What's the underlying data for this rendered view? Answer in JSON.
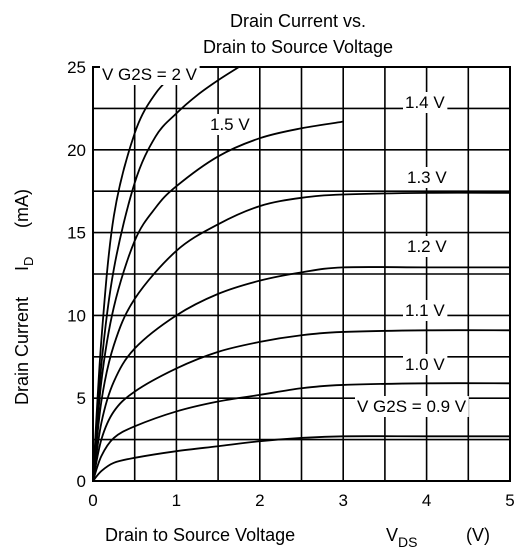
{
  "chart_data": {
    "type": "line",
    "title": [
      "Drain Current vs.",
      "Drain to Source Voltage"
    ],
    "xlabel": "Drain to Source Voltage",
    "xlabel_symbol": "V",
    "xlabel_subscript": "DS",
    "xlabel_unit": "(V)",
    "ylabel": "Drain Current",
    "ylabel_symbol": "I",
    "ylabel_subscript": "D",
    "ylabel_unit": "(mA)",
    "xlim": [
      0,
      5
    ],
    "ylim": [
      0,
      25
    ],
    "x_ticks": [
      0,
      1,
      2,
      3,
      4,
      5
    ],
    "y_ticks": [
      0,
      5,
      10,
      15,
      20,
      25
    ],
    "grid": true,
    "x_minor_step": 0.5,
    "y_minor_step": 2.5,
    "series": [
      {
        "name": "VG2S = 0.9 V",
        "label": "V G2S = 0.9 V",
        "x": [
          0,
          0.1,
          0.25,
          0.5,
          1,
          1.5,
          2,
          2.5,
          3,
          4,
          5
        ],
        "y": [
          0,
          0.6,
          1.1,
          1.4,
          1.8,
          2.1,
          2.4,
          2.6,
          2.7,
          2.7,
          2.7
        ]
      },
      {
        "name": "1.0 V",
        "label": "1.0 V",
        "x": [
          0,
          0.1,
          0.25,
          0.5,
          1,
          1.5,
          2,
          2.5,
          3,
          4,
          5
        ],
        "y": [
          0,
          1.5,
          2.6,
          3.3,
          4.2,
          4.8,
          5.2,
          5.6,
          5.8,
          5.9,
          5.9
        ]
      },
      {
        "name": "1.1 V",
        "label": "1.1 V",
        "x": [
          0,
          0.1,
          0.25,
          0.5,
          1,
          1.5,
          2,
          2.5,
          3,
          4,
          5
        ],
        "y": [
          0,
          2.5,
          4.2,
          5.4,
          6.8,
          7.8,
          8.4,
          8.8,
          9.0,
          9.1,
          9.1
        ]
      },
      {
        "name": "1.2 V",
        "label": "1.2 V",
        "x": [
          0,
          0.1,
          0.25,
          0.5,
          1,
          1.5,
          2,
          2.5,
          3,
          4,
          5
        ],
        "y": [
          0,
          3.5,
          6.0,
          8.0,
          10.0,
          11.3,
          12.1,
          12.6,
          12.9,
          12.9,
          12.9
        ]
      },
      {
        "name": "1.3 V",
        "label": "1.3 V",
        "x": [
          0,
          0.1,
          0.25,
          0.5,
          1,
          1.5,
          2,
          2.5,
          3,
          4,
          5
        ],
        "y": [
          0,
          4.8,
          8.2,
          11.0,
          13.9,
          15.5,
          16.6,
          17.1,
          17.3,
          17.4,
          17.4
        ]
      },
      {
        "name": "1.4 V",
        "label": "1.4 V",
        "x": [
          0,
          0.1,
          0.25,
          0.5,
          0.75,
          1,
          1.5,
          2,
          2.5,
          3
        ],
        "y": [
          0,
          6.0,
          10.5,
          14.5,
          16.5,
          17.8,
          19.6,
          20.7,
          21.3,
          21.7
        ]
      },
      {
        "name": "1.5 V",
        "label": "1.5 V",
        "x": [
          0,
          0.1,
          0.25,
          0.5,
          0.75,
          1,
          1.25,
          1.5,
          1.75
        ],
        "y": [
          0,
          7.0,
          12.8,
          18.0,
          20.8,
          22.2,
          23.3,
          24.2,
          25.0
        ]
      },
      {
        "name": "VG2S = 2 V",
        "label": "V G2S = 2 V",
        "x": [
          0,
          0.1,
          0.25,
          0.5,
          0.75,
          1,
          1.2
        ],
        "y": [
          0,
          8.5,
          16.0,
          21.0,
          23.4,
          24.6,
          25.0
        ]
      }
    ]
  }
}
